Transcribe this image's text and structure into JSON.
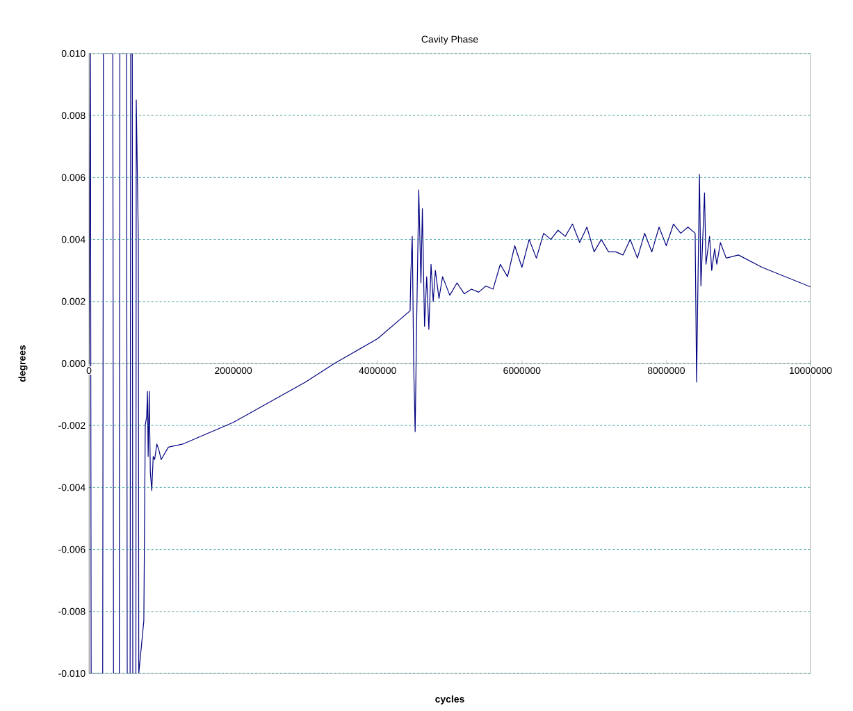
{
  "chart_data": {
    "type": "line",
    "title": "Cavity Phase",
    "xlabel": "cycles",
    "ylabel": "degrees",
    "xlim": [
      0,
      10000000
    ],
    "ylim": [
      -0.01,
      0.01
    ],
    "xticks": [
      0,
      2000000,
      4000000,
      6000000,
      8000000,
      10000000
    ],
    "yticks": [
      {
        "value": -0.01,
        "label": "-0.010"
      },
      {
        "value": -0.008,
        "label": "-0.008"
      },
      {
        "value": -0.006,
        "label": "-0.006"
      },
      {
        "value": -0.004,
        "label": "-0.004"
      },
      {
        "value": -0.002,
        "label": "-0.002"
      },
      {
        "value": 0,
        "label": "0.000"
      },
      {
        "value": 0.002,
        "label": "0.002"
      },
      {
        "value": 0.004,
        "label": "0.004"
      },
      {
        "value": 0.006,
        "label": "0.006"
      },
      {
        "value": 0.008,
        "label": "0.008"
      },
      {
        "value": 0.01,
        "label": "0.010"
      }
    ],
    "grid": "y",
    "marker": "none",
    "line_style": "solid",
    "x": [
      0,
      20000,
      30000,
      190000,
      200000,
      330000,
      340000,
      420000,
      424000,
      428000,
      520000,
      530000,
      570000,
      578000,
      600000,
      607000,
      650000,
      655000,
      684000,
      690000,
      760000,
      780000,
      800000,
      810000,
      820000,
      835000,
      850000,
      870000,
      890000,
      910000,
      940000,
      970000,
      1000000,
      1100000,
      1300000,
      1500000,
      2000000,
      3000000,
      3400000,
      4000000,
      4450000,
      4460000,
      4480000,
      4500000,
      4520000,
      4540000,
      4570000,
      4600000,
      4620000,
      4650000,
      4680000,
      4710000,
      4740000,
      4770000,
      4800000,
      4850000,
      4900000,
      5000000,
      5100000,
      5200000,
      5300000,
      5400000,
      5500000,
      5600000,
      5700000,
      5800000,
      5900000,
      6000000,
      6100000,
      6200000,
      6300000,
      6400000,
      6500000,
      6600000,
      6700000,
      6800000,
      6900000,
      7000000,
      7100000,
      7200000,
      7300000,
      7400000,
      7500000,
      7600000,
      7700000,
      7800000,
      7900000,
      8000000,
      8100000,
      8200000,
      8300000,
      8400000,
      8420000,
      8460000,
      8480000,
      8530000,
      8550000,
      8600000,
      8630000,
      8670000,
      8700000,
      8750000,
      8830000,
      9000000,
      9330000,
      10000000
    ],
    "series": [
      {
        "color": "#000080",
        "values": [
          0,
          0.01,
          -0.01,
          -0.01,
          0.01,
          0.01,
          -0.01,
          -0.01,
          0.0022,
          0.01,
          0.01,
          -0.01,
          -0.01,
          0.01,
          0.01,
          -0.01,
          -0.01,
          0.0085,
          0.004,
          -0.01,
          -0.0083,
          -0.002,
          -0.0017,
          -0.0009,
          -0.003,
          -0.0009,
          -0.0035,
          -0.0041,
          -0.003,
          -0.0031,
          -0.0026,
          -0.0028,
          -0.0031,
          -0.0027,
          -0.0026,
          -0.0024,
          -0.0019,
          -0.0006,
          0.0,
          0.0008,
          0.0017,
          0.0029,
          0.0041,
          -0.0001,
          -0.0022,
          0.0012,
          0.0056,
          0.0026,
          0.005,
          0.0012,
          0.0028,
          0.0011,
          0.0032,
          0.002,
          0.003,
          0.0021,
          0.0028,
          0.0022,
          0.0026,
          0.00225,
          0.0024,
          0.0023,
          0.0025,
          0.0024,
          0.0032,
          0.0028,
          0.0038,
          0.0031,
          0.004,
          0.0034,
          0.0042,
          0.004,
          0.0043,
          0.0041,
          0.0045,
          0.0039,
          0.0044,
          0.0036,
          0.004,
          0.0036,
          0.0036,
          0.0035,
          0.004,
          0.0034,
          0.0042,
          0.0036,
          0.0044,
          0.0038,
          0.0045,
          0.0042,
          0.0044,
          0.0042,
          -0.0006,
          0.0061,
          0.0025,
          0.0055,
          0.0032,
          0.0041,
          0.003,
          0.0037,
          0.0032,
          0.0039,
          0.0034,
          0.0035,
          0.0031,
          0.00247
        ]
      }
    ]
  }
}
